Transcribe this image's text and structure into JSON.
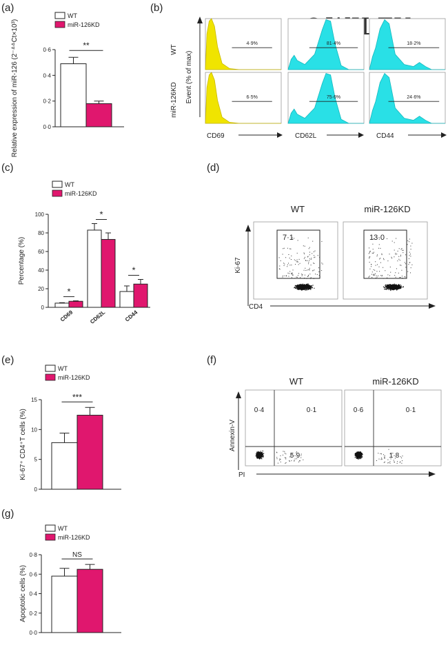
{
  "panels": {
    "a": "(a)",
    "b": "(b)",
    "c": "(c)",
    "d": "(d)",
    "e": "(e)",
    "f": "(f)",
    "g": "(g)"
  },
  "watermark": "©WILEY",
  "legend": {
    "wt": "WT",
    "kd": "miR-126KD"
  },
  "colors": {
    "wt": "#ffffff",
    "kd": "#e0176e",
    "flowYellow": "#f0e400",
    "flowCyan": "#29e0e6"
  },
  "chart_data": [
    {
      "id": "a",
      "type": "bar",
      "ylabel": "Relative expression of miR-126 (2⁻ᐞᐞCt×10³)",
      "ylim": [
        0,
        0.6
      ],
      "yticks": [
        "0·0",
        "0·2",
        "0·4",
        "0·6"
      ],
      "series": [
        {
          "name": "WT",
          "values": [
            0.49
          ],
          "errors": [
            0.05
          ]
        },
        {
          "name": "miR-126KD",
          "values": [
            0.18
          ],
          "errors": [
            0.02
          ]
        }
      ],
      "significance": [
        "**"
      ]
    },
    {
      "id": "b",
      "type": "histogram",
      "ylabel": "Event (% of max)",
      "rows": [
        "WT",
        "miR-126KD"
      ],
      "columns": [
        "CD69",
        "CD62L",
        "CD44"
      ],
      "gate_values": [
        [
          "4·9%",
          "81·4%",
          "18·2%"
        ],
        [
          "6·5%",
          "75·6%",
          "24·6%"
        ]
      ]
    },
    {
      "id": "c",
      "type": "bar",
      "ylabel": "Percentage (%)",
      "ylim": [
        0,
        100
      ],
      "yticks": [
        "0",
        "20",
        "40",
        "60",
        "80",
        "100"
      ],
      "categories": [
        "CD69",
        "CD62L",
        "CD44"
      ],
      "series": [
        {
          "name": "WT",
          "values": [
            4.5,
            83,
            17
          ],
          "errors": [
            0.5,
            7,
            6
          ]
        },
        {
          "name": "miR-126KD",
          "values": [
            6.5,
            73,
            25
          ],
          "errors": [
            0.5,
            7,
            5
          ]
        }
      ],
      "significance": [
        "*",
        "*",
        "*"
      ]
    },
    {
      "id": "d",
      "type": "scatter",
      "titles": [
        "WT",
        "miR-126KD"
      ],
      "xlabel": "CD4",
      "ylabel": "Ki-67",
      "gate_values": [
        "7·1",
        "13·0"
      ]
    },
    {
      "id": "e",
      "type": "bar",
      "ylabel": "Ki-67⁺ CD4⁺T cells (%)",
      "ylim": [
        0,
        15
      ],
      "yticks": [
        "0",
        "5",
        "10",
        "15"
      ],
      "series": [
        {
          "name": "WT",
          "values": [
            7.8
          ],
          "errors": [
            1.6
          ]
        },
        {
          "name": "miR-126KD",
          "values": [
            12.4
          ],
          "errors": [
            1.3
          ]
        }
      ],
      "significance": [
        "***"
      ]
    },
    {
      "id": "f",
      "type": "scatter",
      "titles": [
        "WT",
        "miR-126KD"
      ],
      "xlabel": "PI",
      "ylabel": "Annexin-V",
      "quadrants": [
        {
          "ul": "0·4",
          "ur": "0·1",
          "lr": "5·9"
        },
        {
          "ul": "0·6",
          "ur": "0·1",
          "lr": "1·8"
        }
      ]
    },
    {
      "id": "g",
      "type": "bar",
      "ylabel": "Apoptotic cells (%)",
      "ylim": [
        0,
        0.8
      ],
      "yticks": [
        "0·0",
        "0·2",
        "0·4",
        "0·6",
        "0·8"
      ],
      "series": [
        {
          "name": "WT",
          "values": [
            0.58
          ],
          "errors": [
            0.08
          ]
        },
        {
          "name": "miR-126KD",
          "values": [
            0.65
          ],
          "errors": [
            0.05
          ]
        }
      ],
      "significance": [
        "NS"
      ]
    }
  ]
}
